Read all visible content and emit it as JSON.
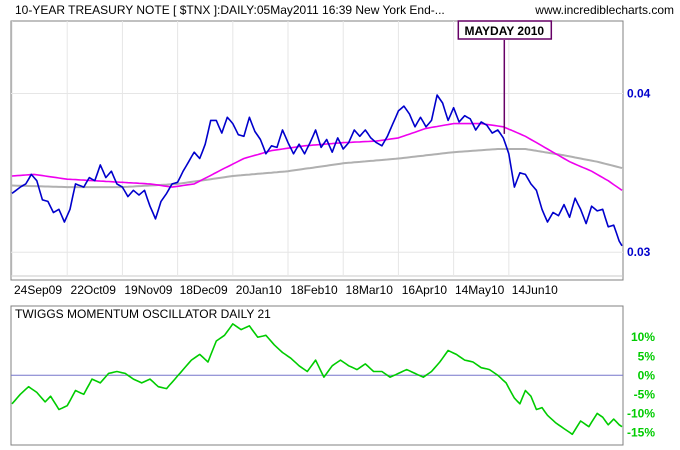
{
  "header": {
    "title": "10-YEAR TREASURY NOTE [ $TNX ]:DAILY:05May2011 16:39 New York End-...",
    "site": "www.incrediblecharts.com"
  },
  "annotation": {
    "text": "MAYDAY 2010",
    "date_index": 178
  },
  "lower_panel": {
    "title": "TWIGGS MOMENTUM OSCILLATOR DAILY 21"
  },
  "colors": {
    "price": "#0000cc",
    "ma_short": "#ee00ee",
    "ma_long": "#b0b0b0",
    "oscillator": "#00cc00",
    "axis_text": "#0000cc",
    "frame": "#808080",
    "grid": "#e6e6e6",
    "annotation": "#660066",
    "zero_line": "#7777cc"
  },
  "chart_data": [
    {
      "type": "line",
      "panel": "price",
      "title": "10-YEAR TREASURY NOTE [ $TNX ]:DAILY:05May2011 16:39 New York End-...",
      "x_count": 222,
      "x_ticks": [
        {
          "i": 0,
          "label": "24Sep09"
        },
        {
          "i": 20,
          "label": "22Oct09"
        },
        {
          "i": 40,
          "label": "19Nov09"
        },
        {
          "i": 60,
          "label": "18Dec09"
        },
        {
          "i": 80,
          "label": "20Jan10"
        },
        {
          "i": 100,
          "label": "18Feb10"
        },
        {
          "i": 120,
          "label": "18Mar10"
        },
        {
          "i": 140,
          "label": "16Apr10"
        },
        {
          "i": 160,
          "label": "14May10"
        },
        {
          "i": 180,
          "label": "14Jun10"
        }
      ],
      "y_ticks": [
        {
          "value": 0.04,
          "label": "0.04"
        },
        {
          "value": 0.03,
          "label": "0.03"
        }
      ],
      "ylim": [
        0.0285,
        0.0445
      ],
      "grid": true,
      "keyframes": [
        {
          "i": 0,
          "v": 0.0337
        },
        {
          "i": 3,
          "v": 0.0341
        },
        {
          "i": 5,
          "v": 0.0343
        },
        {
          "i": 7,
          "v": 0.0349
        },
        {
          "i": 9,
          "v": 0.0345
        },
        {
          "i": 11,
          "v": 0.0333
        },
        {
          "i": 13,
          "v": 0.0332
        },
        {
          "i": 15,
          "v": 0.0325
        },
        {
          "i": 17,
          "v": 0.0327
        },
        {
          "i": 19,
          "v": 0.0319
        },
        {
          "i": 21,
          "v": 0.0327
        },
        {
          "i": 23,
          "v": 0.0343
        },
        {
          "i": 26,
          "v": 0.0341
        },
        {
          "i": 28,
          "v": 0.0347
        },
        {
          "i": 30,
          "v": 0.0345
        },
        {
          "i": 32,
          "v": 0.0355
        },
        {
          "i": 34,
          "v": 0.0347
        },
        {
          "i": 36,
          "v": 0.0351
        },
        {
          "i": 38,
          "v": 0.0343
        },
        {
          "i": 40,
          "v": 0.0341
        },
        {
          "i": 42,
          "v": 0.0335
        },
        {
          "i": 44,
          "v": 0.0339
        },
        {
          "i": 46,
          "v": 0.0336
        },
        {
          "i": 48,
          "v": 0.0339
        },
        {
          "i": 50,
          "v": 0.0329
        },
        {
          "i": 52,
          "v": 0.0321
        },
        {
          "i": 54,
          "v": 0.0332
        },
        {
          "i": 56,
          "v": 0.0337
        },
        {
          "i": 58,
          "v": 0.0343
        },
        {
          "i": 60,
          "v": 0.0344
        },
        {
          "i": 62,
          "v": 0.0351
        },
        {
          "i": 64,
          "v": 0.0357
        },
        {
          "i": 66,
          "v": 0.0363
        },
        {
          "i": 68,
          "v": 0.0359
        },
        {
          "i": 70,
          "v": 0.0368
        },
        {
          "i": 72,
          "v": 0.0383
        },
        {
          "i": 74,
          "v": 0.0383
        },
        {
          "i": 76,
          "v": 0.0375
        },
        {
          "i": 78,
          "v": 0.0385
        },
        {
          "i": 80,
          "v": 0.0381
        },
        {
          "i": 82,
          "v": 0.0374
        },
        {
          "i": 84,
          "v": 0.0373
        },
        {
          "i": 86,
          "v": 0.0385
        },
        {
          "i": 88,
          "v": 0.0376
        },
        {
          "i": 90,
          "v": 0.0371
        },
        {
          "i": 92,
          "v": 0.0362
        },
        {
          "i": 94,
          "v": 0.0367
        },
        {
          "i": 96,
          "v": 0.0366
        },
        {
          "i": 98,
          "v": 0.0377
        },
        {
          "i": 100,
          "v": 0.0369
        },
        {
          "i": 102,
          "v": 0.0362
        },
        {
          "i": 104,
          "v": 0.0368
        },
        {
          "i": 106,
          "v": 0.0362
        },
        {
          "i": 108,
          "v": 0.0369
        },
        {
          "i": 110,
          "v": 0.0377
        },
        {
          "i": 112,
          "v": 0.0366
        },
        {
          "i": 114,
          "v": 0.0371
        },
        {
          "i": 116,
          "v": 0.0363
        },
        {
          "i": 118,
          "v": 0.0372
        },
        {
          "i": 120,
          "v": 0.0365
        },
        {
          "i": 122,
          "v": 0.0369
        },
        {
          "i": 124,
          "v": 0.0377
        },
        {
          "i": 126,
          "v": 0.0373
        },
        {
          "i": 128,
          "v": 0.0377
        },
        {
          "i": 130,
          "v": 0.0372
        },
        {
          "i": 132,
          "v": 0.0369
        },
        {
          "i": 134,
          "v": 0.0367
        },
        {
          "i": 136,
          "v": 0.0373
        },
        {
          "i": 138,
          "v": 0.0381
        },
        {
          "i": 140,
          "v": 0.0389
        },
        {
          "i": 142,
          "v": 0.0392
        },
        {
          "i": 144,
          "v": 0.0387
        },
        {
          "i": 146,
          "v": 0.0379
        },
        {
          "i": 148,
          "v": 0.0385
        },
        {
          "i": 150,
          "v": 0.0379
        },
        {
          "i": 152,
          "v": 0.0383
        },
        {
          "i": 154,
          "v": 0.0399
        },
        {
          "i": 156,
          "v": 0.0394
        },
        {
          "i": 158,
          "v": 0.0383
        },
        {
          "i": 160,
          "v": 0.0391
        },
        {
          "i": 162,
          "v": 0.0382
        },
        {
          "i": 164,
          "v": 0.0386
        },
        {
          "i": 166,
          "v": 0.0384
        },
        {
          "i": 168,
          "v": 0.0377
        },
        {
          "i": 170,
          "v": 0.0382
        },
        {
          "i": 172,
          "v": 0.038
        },
        {
          "i": 174,
          "v": 0.0375
        },
        {
          "i": 176,
          "v": 0.0377
        },
        {
          "i": 178,
          "v": 0.0372
        },
        {
          "i": 180,
          "v": 0.0362
        },
        {
          "i": 182,
          "v": 0.0341
        },
        {
          "i": 184,
          "v": 0.035
        },
        {
          "i": 186,
          "v": 0.0349
        },
        {
          "i": 188,
          "v": 0.0343
        },
        {
          "i": 190,
          "v": 0.0339
        },
        {
          "i": 192,
          "v": 0.0327
        },
        {
          "i": 194,
          "v": 0.0319
        },
        {
          "i": 196,
          "v": 0.0325
        },
        {
          "i": 198,
          "v": 0.0323
        },
        {
          "i": 200,
          "v": 0.033
        },
        {
          "i": 202,
          "v": 0.0322
        },
        {
          "i": 204,
          "v": 0.0334
        },
        {
          "i": 206,
          "v": 0.0327
        },
        {
          "i": 208,
          "v": 0.0318
        },
        {
          "i": 210,
          "v": 0.0329
        },
        {
          "i": 212,
          "v": 0.0326
        },
        {
          "i": 214,
          "v": 0.0327
        },
        {
          "i": 216,
          "v": 0.0316
        },
        {
          "i": 218,
          "v": 0.0317
        },
        {
          "i": 220,
          "v": 0.0307
        },
        {
          "i": 221,
          "v": 0.0304
        }
      ],
      "ma_short": [
        {
          "i": 0,
          "v": 0.0348
        },
        {
          "i": 8,
          "v": 0.0349
        },
        {
          "i": 20,
          "v": 0.0346
        },
        {
          "i": 30,
          "v": 0.0345
        },
        {
          "i": 40,
          "v": 0.0344
        },
        {
          "i": 50,
          "v": 0.0343
        },
        {
          "i": 58,
          "v": 0.0341
        },
        {
          "i": 66,
          "v": 0.0343
        },
        {
          "i": 76,
          "v": 0.0352
        },
        {
          "i": 84,
          "v": 0.0359
        },
        {
          "i": 94,
          "v": 0.0364
        },
        {
          "i": 106,
          "v": 0.0367
        },
        {
          "i": 120,
          "v": 0.0369
        },
        {
          "i": 132,
          "v": 0.037
        },
        {
          "i": 140,
          "v": 0.0372
        },
        {
          "i": 150,
          "v": 0.0378
        },
        {
          "i": 160,
          "v": 0.0381
        },
        {
          "i": 170,
          "v": 0.0381
        },
        {
          "i": 178,
          "v": 0.0379
        },
        {
          "i": 186,
          "v": 0.0373
        },
        {
          "i": 194,
          "v": 0.0365
        },
        {
          "i": 202,
          "v": 0.0357
        },
        {
          "i": 210,
          "v": 0.0351
        },
        {
          "i": 216,
          "v": 0.0345
        },
        {
          "i": 221,
          "v": 0.0339
        }
      ],
      "ma_long": [
        {
          "i": 0,
          "v": 0.0342
        },
        {
          "i": 20,
          "v": 0.0341
        },
        {
          "i": 40,
          "v": 0.0341
        },
        {
          "i": 60,
          "v": 0.0343
        },
        {
          "i": 80,
          "v": 0.0348
        },
        {
          "i": 100,
          "v": 0.0351
        },
        {
          "i": 120,
          "v": 0.0356
        },
        {
          "i": 140,
          "v": 0.0359
        },
        {
          "i": 160,
          "v": 0.0363
        },
        {
          "i": 176,
          "v": 0.0365
        },
        {
          "i": 186,
          "v": 0.0365
        },
        {
          "i": 200,
          "v": 0.0361
        },
        {
          "i": 212,
          "v": 0.0357
        },
        {
          "i": 221,
          "v": 0.0353
        }
      ]
    },
    {
      "type": "line",
      "panel": "oscillator",
      "title": "TWIGGS MOMENTUM OSCILLATOR DAILY 21",
      "x_count": 222,
      "y_ticks": [
        {
          "value": 10,
          "label": "10%"
        },
        {
          "value": 5,
          "label": "5%"
        },
        {
          "value": 0,
          "label": "0%"
        },
        {
          "value": -5,
          "label": "-5%"
        },
        {
          "value": -10,
          "label": "-10%"
        },
        {
          "value": -15,
          "label": "-15%"
        }
      ],
      "ylim": [
        -17,
        14
      ],
      "zero_line": true,
      "keyframes": [
        {
          "i": 0,
          "v": -7.5
        },
        {
          "i": 3,
          "v": -5
        },
        {
          "i": 6,
          "v": -3
        },
        {
          "i": 9,
          "v": -4.5
        },
        {
          "i": 12,
          "v": -7
        },
        {
          "i": 14,
          "v": -5.5
        },
        {
          "i": 17,
          "v": -9
        },
        {
          "i": 20,
          "v": -8
        },
        {
          "i": 23,
          "v": -4
        },
        {
          "i": 26,
          "v": -5
        },
        {
          "i": 29,
          "v": -1
        },
        {
          "i": 32,
          "v": -2
        },
        {
          "i": 35,
          "v": 0.5
        },
        {
          "i": 38,
          "v": 1
        },
        {
          "i": 41,
          "v": 0.5
        },
        {
          "i": 44,
          "v": -1
        },
        {
          "i": 47,
          "v": -2
        },
        {
          "i": 50,
          "v": -1
        },
        {
          "i": 53,
          "v": -3
        },
        {
          "i": 56,
          "v": -3.5
        },
        {
          "i": 59,
          "v": -1
        },
        {
          "i": 62,
          "v": 1.5
        },
        {
          "i": 65,
          "v": 4
        },
        {
          "i": 68,
          "v": 5.5
        },
        {
          "i": 71,
          "v": 3.5
        },
        {
          "i": 74,
          "v": 9
        },
        {
          "i": 77,
          "v": 10.5
        },
        {
          "i": 80,
          "v": 13.5
        },
        {
          "i": 83,
          "v": 12
        },
        {
          "i": 86,
          "v": 13
        },
        {
          "i": 89,
          "v": 10
        },
        {
          "i": 92,
          "v": 10.5
        },
        {
          "i": 95,
          "v": 8
        },
        {
          "i": 98,
          "v": 6
        },
        {
          "i": 101,
          "v": 4.5
        },
        {
          "i": 104,
          "v": 2.5
        },
        {
          "i": 107,
          "v": 1
        },
        {
          "i": 110,
          "v": 4
        },
        {
          "i": 113,
          "v": -0.5
        },
        {
          "i": 116,
          "v": 2.5
        },
        {
          "i": 119,
          "v": 4
        },
        {
          "i": 122,
          "v": 2.5
        },
        {
          "i": 125,
          "v": 1.5
        },
        {
          "i": 128,
          "v": 3
        },
        {
          "i": 131,
          "v": 1
        },
        {
          "i": 134,
          "v": 1
        },
        {
          "i": 137,
          "v": -0.5
        },
        {
          "i": 140,
          "v": 0.5
        },
        {
          "i": 143,
          "v": 1.5
        },
        {
          "i": 146,
          "v": 0.5
        },
        {
          "i": 149,
          "v": -0.5
        },
        {
          "i": 152,
          "v": 1
        },
        {
          "i": 155,
          "v": 3.5
        },
        {
          "i": 158,
          "v": 6.5
        },
        {
          "i": 161,
          "v": 5.5
        },
        {
          "i": 164,
          "v": 4
        },
        {
          "i": 167,
          "v": 3.5
        },
        {
          "i": 170,
          "v": 2
        },
        {
          "i": 173,
          "v": 1.5
        },
        {
          "i": 176,
          "v": 0
        },
        {
          "i": 179,
          "v": -2
        },
        {
          "i": 182,
          "v": -6
        },
        {
          "i": 184,
          "v": -7.5
        },
        {
          "i": 186,
          "v": -4
        },
        {
          "i": 188,
          "v": -5.5
        },
        {
          "i": 190,
          "v": -9
        },
        {
          "i": 192,
          "v": -8.5
        },
        {
          "i": 194,
          "v": -10.5
        },
        {
          "i": 197,
          "v": -12.5
        },
        {
          "i": 200,
          "v": -14
        },
        {
          "i": 203,
          "v": -15.5
        },
        {
          "i": 206,
          "v": -12
        },
        {
          "i": 209,
          "v": -13.5
        },
        {
          "i": 212,
          "v": -10
        },
        {
          "i": 214,
          "v": -11
        },
        {
          "i": 216,
          "v": -13
        },
        {
          "i": 218,
          "v": -11.5
        },
        {
          "i": 220,
          "v": -13
        },
        {
          "i": 221,
          "v": -13.5
        }
      ]
    }
  ]
}
